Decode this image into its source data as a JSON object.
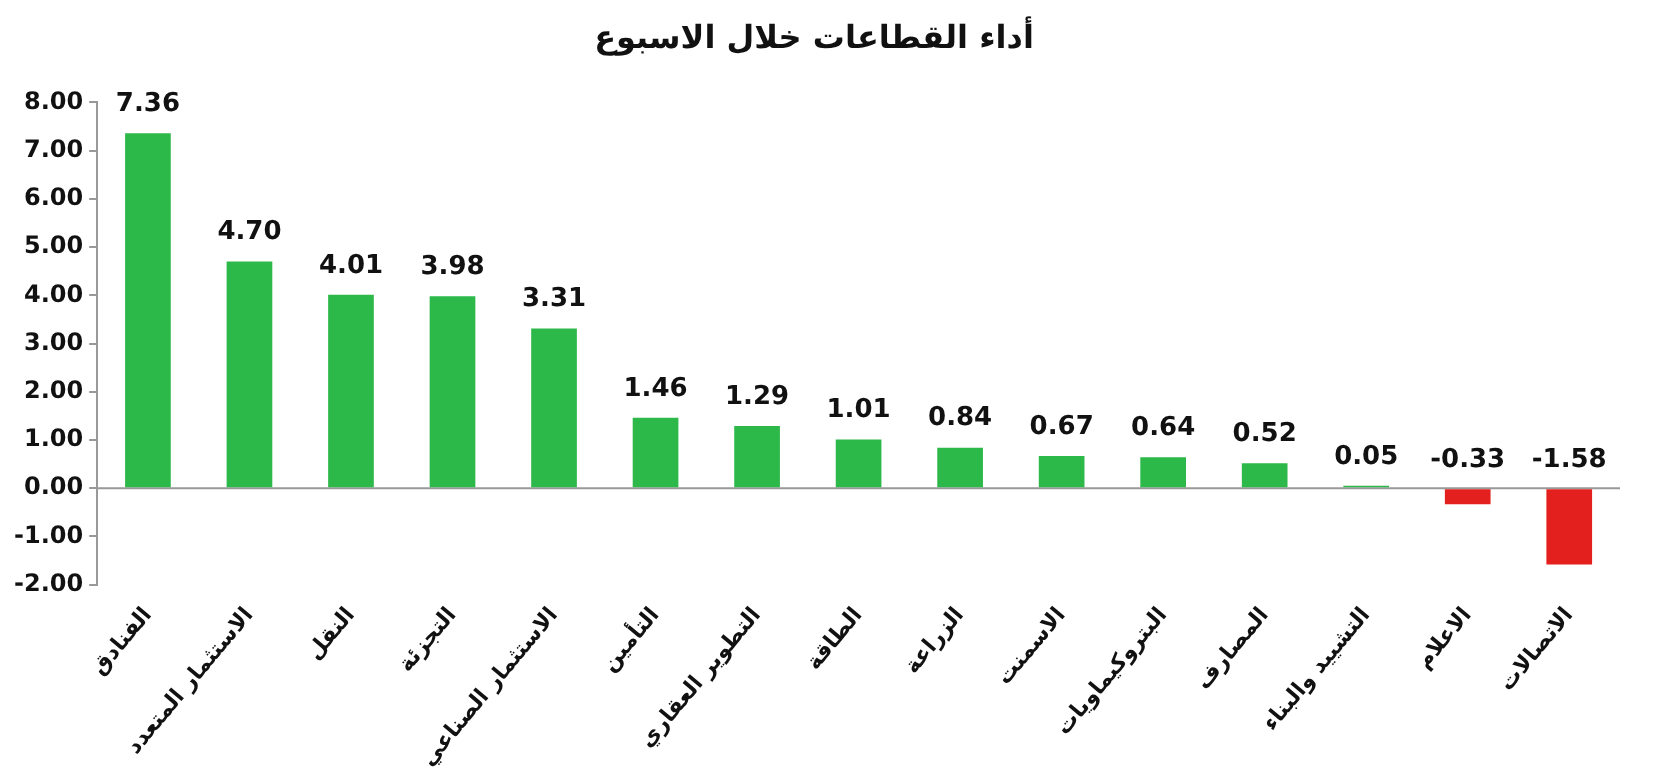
{
  "chart_data": {
    "type": "bar",
    "title": "أداء القطاعات خلال الاسبوع",
    "categories": [
      "الفنادق",
      "الاستثمار المتعدد",
      "النقل",
      "التجزئة",
      "الاستثمار الصناعي",
      "التأمين",
      "التطوير العقاري",
      "الطاقة",
      "الزراعة",
      "الاسمنت",
      "البتروكيماويات",
      "المصارف",
      "التشييد والبناء",
      "الاعلام",
      "الاتصالات"
    ],
    "values": [
      7.36,
      4.7,
      4.01,
      3.98,
      3.31,
      1.46,
      1.29,
      1.01,
      0.84,
      0.67,
      0.64,
      0.52,
      0.05,
      -0.33,
      -1.58
    ],
    "value_labels": [
      "7.36",
      "4.70",
      "4.01",
      "3.98",
      "3.31",
      "1.46",
      "1.29",
      "1.01",
      "0.84",
      "0.67",
      "0.64",
      "0.52",
      "0.05",
      "-0.33",
      "-1.58"
    ],
    "colors": [
      "#2db84a",
      "#2db84a",
      "#2db84a",
      "#2db84a",
      "#2db84a",
      "#2db84a",
      "#2db84a",
      "#2db84a",
      "#2db84a",
      "#2db84a",
      "#2db84a",
      "#2db84a",
      "#2db84a",
      "#e3201e",
      "#e3201e"
    ],
    "ylim": [
      -2,
      8
    ],
    "yticks": [
      {
        "value": -2,
        "label": "-2.00"
      },
      {
        "value": -1,
        "label": "-1.00"
      },
      {
        "value": 0,
        "label": "0.00"
      },
      {
        "value": 1,
        "label": "1.00"
      },
      {
        "value": 2,
        "label": "2.00"
      },
      {
        "value": 3,
        "label": "3.00"
      },
      {
        "value": 4,
        "label": "4.00"
      },
      {
        "value": 5,
        "label": "5.00"
      },
      {
        "value": 6,
        "label": "6.00"
      },
      {
        "value": 7,
        "label": "7.00"
      },
      {
        "value": 8,
        "label": "8.00"
      }
    ],
    "legend": false
  }
}
